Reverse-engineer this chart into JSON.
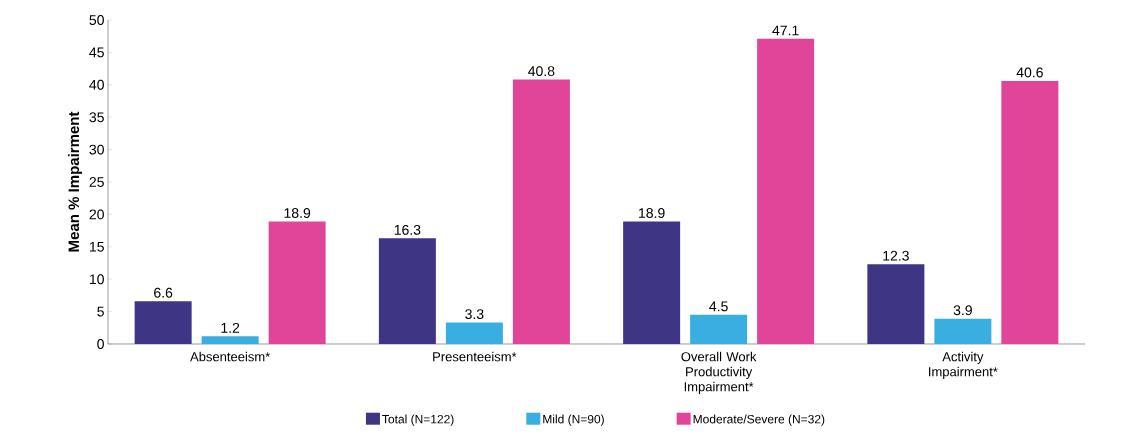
{
  "chart_data": {
    "type": "bar",
    "ylabel": "Mean % Impairment",
    "categories": [
      "Absenteeism*",
      "Presenteeism*",
      "Overall Work Productivity Impairment*",
      "Activity Impairment*"
    ],
    "series": [
      {
        "name": "Total (N=122)",
        "color": "#3f3585",
        "values": [
          6.6,
          16.3,
          18.9,
          12.3
        ]
      },
      {
        "name": "Mild (N=90)",
        "color": "#3aaee0",
        "values": [
          1.2,
          3.3,
          4.5,
          3.9
        ]
      },
      {
        "name": "Moderate/Severe (N=32)",
        "color": "#e0459a",
        "values": [
          18.9,
          40.8,
          47.1,
          40.6
        ]
      }
    ],
    "ylim": [
      0,
      50
    ],
    "yticks": [
      0,
      5,
      10,
      15,
      20,
      25,
      30,
      35,
      40,
      45,
      50
    ],
    "data_labels": true,
    "legend": "bottom",
    "grid": false
  }
}
